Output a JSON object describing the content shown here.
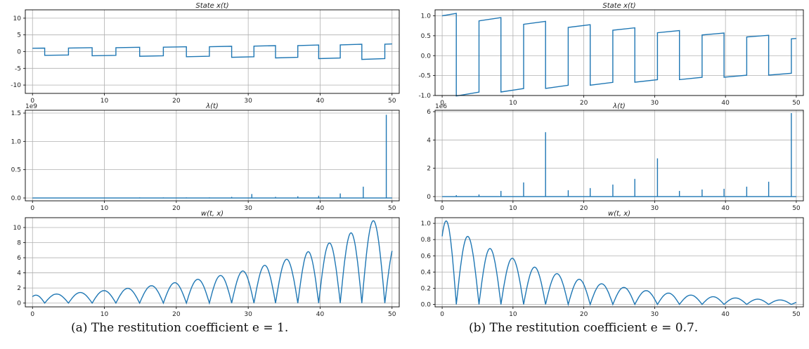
{
  "captions": {
    "a": "(a)  The restitution coefficient e = 1.",
    "b": "(b)  The restitution coefficient e = 0.7."
  },
  "colors": {
    "line": "#1f77b4",
    "grid": "#b0b0b0",
    "axes": "#000000"
  },
  "chart_data": [
    {
      "type": "line",
      "panel": "a",
      "title": "State x(t)",
      "xlim": [
        -1,
        51
      ],
      "ylim": [
        -12.5,
        12.5
      ],
      "xticks": [
        0,
        10,
        20,
        30,
        40,
        50
      ],
      "yticks": [
        -10,
        -5,
        0,
        5,
        10
      ],
      "grid": true,
      "series": [
        {
          "kind": "state",
          "e": 1.0,
          "x0": 1.0,
          "growth": 1.06,
          "t_impacts": [
            1.7,
            5.0,
            8.3,
            11.6,
            14.9,
            18.2,
            21.4,
            24.6,
            27.7,
            30.8,
            33.8,
            36.9,
            39.8,
            42.8,
            45.8,
            49.0
          ]
        }
      ]
    },
    {
      "type": "line",
      "panel": "a",
      "title": "λ(t)",
      "offset_label": "1e9",
      "xlim": [
        -1,
        51
      ],
      "ylim": [
        -0.05,
        1.55
      ],
      "xticks": [
        0,
        10,
        20,
        30,
        40,
        50
      ],
      "yticks": [
        0.0,
        0.5,
        1.0,
        1.5
      ],
      "grid": true,
      "series": [
        {
          "kind": "spikes",
          "x": [
            14.9,
            18.2,
            21.4,
            24.6,
            27.7,
            30.5,
            33.8,
            36.9,
            39.8,
            42.8,
            46.0,
            49.2
          ],
          "y": [
            0.01,
            0.01,
            0.01,
            0.01,
            0.02,
            0.07,
            0.02,
            0.03,
            0.04,
            0.08,
            0.2,
            1.47
          ]
        }
      ]
    },
    {
      "type": "line",
      "panel": "a",
      "title": "w(t, x)",
      "xlim": [
        -1,
        51
      ],
      "ylim": [
        -0.5,
        11.3
      ],
      "xticks": [
        0,
        10,
        20,
        30,
        40,
        50
      ],
      "yticks": [
        0,
        2,
        4,
        6,
        8,
        10
      ],
      "grid": true,
      "series": [
        {
          "kind": "bounce",
          "amps": [
            1.05,
            1.2,
            1.4,
            1.65,
            1.95,
            2.3,
            2.7,
            3.15,
            3.65,
            4.25,
            5.0,
            5.8,
            6.8,
            7.95,
            9.3,
            10.9,
            8.3
          ],
          "zeros": [
            1.7,
            5.0,
            8.3,
            11.6,
            14.9,
            18.2,
            21.4,
            24.6,
            27.7,
            30.8,
            33.8,
            36.9,
            39.8,
            42.8,
            45.8,
            49.0
          ],
          "start": 0.85
        }
      ]
    },
    {
      "type": "line",
      "panel": "b",
      "title": "State x(t)",
      "xlim": [
        -1,
        51
      ],
      "ylim": [
        -1.0,
        1.15
      ],
      "xticks": [
        0,
        10,
        20,
        30,
        40,
        50
      ],
      "yticks": [
        -1.0,
        -0.5,
        0.0,
        0.5,
        1.0
      ],
      "grid": true,
      "series": [
        {
          "kind": "state",
          "e": 0.7,
          "x0": 1.0,
          "growth": 0.955,
          "t_impacts": [
            2.0,
            5.2,
            8.3,
            11.5,
            14.6,
            17.8,
            20.9,
            24.1,
            27.2,
            30.4,
            33.5,
            36.7,
            39.8,
            43.0,
            46.1,
            49.3
          ]
        }
      ]
    },
    {
      "type": "line",
      "panel": "b",
      "title": "λ(t)",
      "offset_label": "1e6",
      "xlim": [
        -1,
        51
      ],
      "ylim": [
        -0.3,
        6.1
      ],
      "xticks": [
        0,
        10,
        20,
        30,
        40,
        50
      ],
      "yticks": [
        0,
        2,
        4,
        6
      ],
      "grid": true,
      "series": [
        {
          "kind": "spikes",
          "x": [
            2.0,
            5.2,
            8.3,
            11.5,
            14.6,
            17.8,
            20.9,
            24.1,
            27.2,
            30.4,
            33.5,
            36.7,
            39.8,
            43.0,
            46.1,
            49.3
          ],
          "y": [
            0.1,
            0.15,
            0.4,
            1.0,
            4.55,
            0.45,
            0.6,
            0.85,
            1.25,
            2.7,
            0.4,
            0.5,
            0.55,
            0.7,
            1.05,
            5.9
          ]
        }
      ]
    },
    {
      "type": "line",
      "panel": "b",
      "title": "w(t, x)",
      "xlim": [
        -1,
        51
      ],
      "ylim": [
        -0.03,
        1.07
      ],
      "xticks": [
        0,
        10,
        20,
        30,
        40,
        50
      ],
      "yticks": [
        0.0,
        0.2,
        0.4,
        0.6,
        0.8,
        1.0
      ],
      "grid": true,
      "series": [
        {
          "kind": "bounce",
          "amps": [
            1.03,
            0.84,
            0.69,
            0.57,
            0.46,
            0.38,
            0.31,
            0.255,
            0.21,
            0.17,
            0.14,
            0.115,
            0.095,
            0.08,
            0.065,
            0.055,
            0.04
          ],
          "zeros": [
            2.0,
            5.2,
            8.3,
            11.5,
            14.6,
            17.8,
            20.9,
            24.1,
            27.2,
            30.4,
            33.5,
            36.7,
            39.8,
            43.0,
            46.1,
            49.3
          ],
          "start": 0.84
        }
      ]
    }
  ]
}
